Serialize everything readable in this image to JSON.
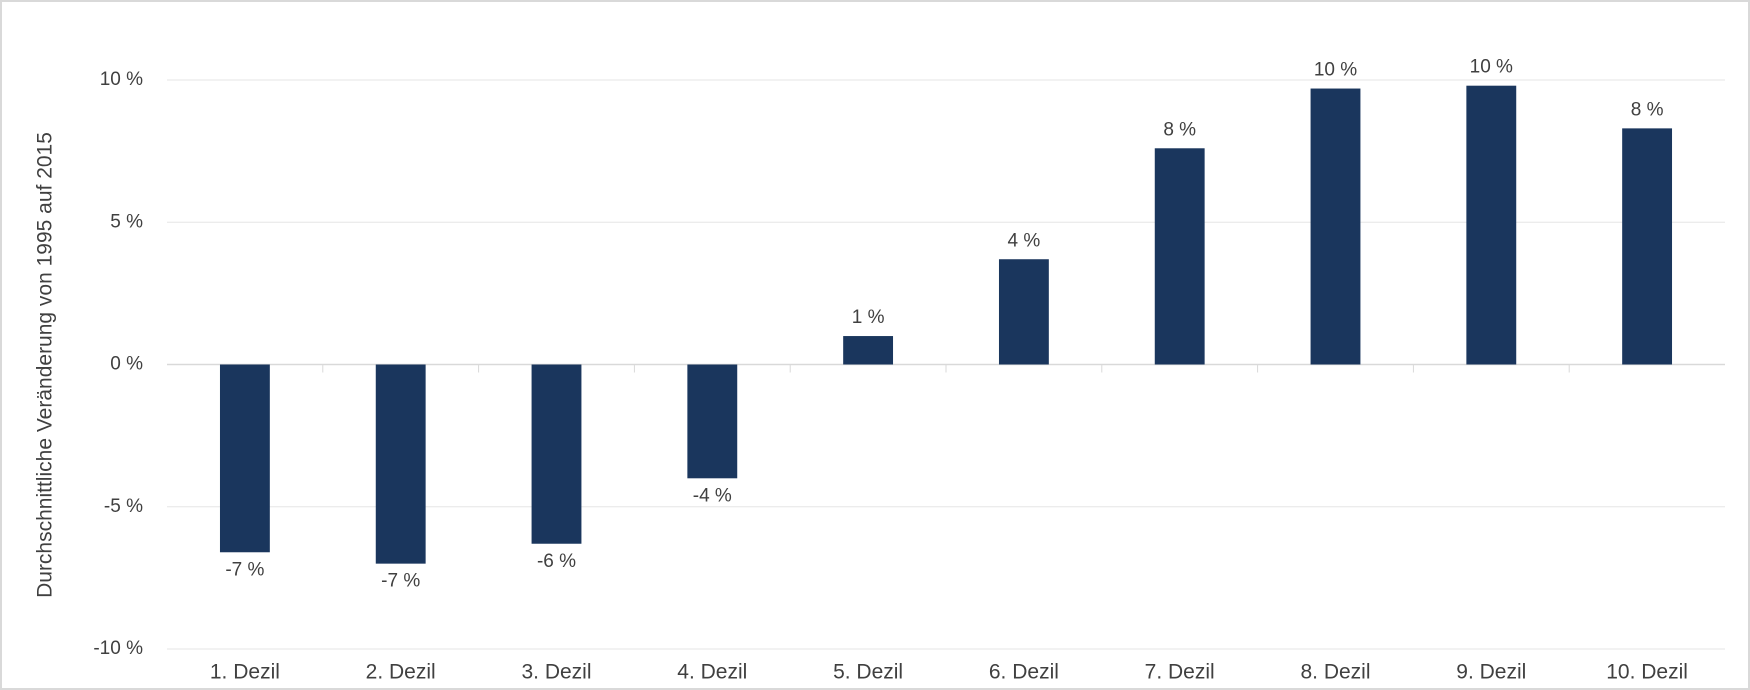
{
  "chart_data": {
    "type": "bar",
    "y_label": "Durchschnittliche Veränderung von 1995 auf 2015",
    "categories": [
      "1. Dezil",
      "2. Dezil",
      "3. Dezil",
      "4. Dezil",
      "5. Dezil",
      "6. Dezil",
      "7. Dezil",
      "8. Dezil",
      "9. Dezil",
      "10. Dezil"
    ],
    "values": [
      -6.6,
      -7.0,
      -6.3,
      -4.0,
      1.0,
      3.7,
      7.6,
      9.7,
      9.8,
      8.3
    ],
    "value_labels": [
      "-7 %",
      "-7 %",
      "-6 %",
      "-4 %",
      "1 %",
      "4 %",
      "8 %",
      "10 %",
      "10 %",
      "8 %"
    ],
    "color": "#1a365d",
    "ylim": [
      -10,
      10
    ],
    "yticks": [
      {
        "value": -10,
        "label": "-10 %"
      },
      {
        "value": -5,
        "label": "-5 %"
      },
      {
        "value": 0,
        "label": "0 %"
      },
      {
        "value": 5,
        "label": "5 %"
      },
      {
        "value": 10,
        "label": "10 %"
      }
    ],
    "grid": true
  }
}
